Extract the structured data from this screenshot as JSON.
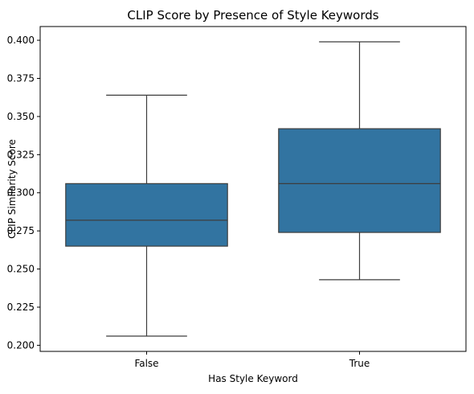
{
  "chart_data": {
    "type": "box",
    "title": "CLIP Score by Presence of Style Keywords",
    "xlabel": "Has Style Keyword",
    "ylabel": "CLIP Similarity Score",
    "categories": [
      "False",
      "True"
    ],
    "boxes": [
      {
        "category": "False",
        "whisker_low": 0.206,
        "q1": 0.265,
        "median": 0.282,
        "q3": 0.306,
        "whisker_high": 0.364
      },
      {
        "category": "True",
        "whisker_low": 0.243,
        "q1": 0.274,
        "median": 0.306,
        "q3": 0.342,
        "whisker_high": 0.399
      }
    ],
    "ylim": [
      0.196,
      0.409
    ],
    "yticks": [
      0.2,
      0.225,
      0.25,
      0.275,
      0.3,
      0.325,
      0.35,
      0.375,
      0.4
    ],
    "ytick_labels": [
      "0.200",
      "0.225",
      "0.250",
      "0.275",
      "0.300",
      "0.325",
      "0.350",
      "0.375",
      "0.400"
    ],
    "grid": false,
    "colors": {
      "box_fill": "#3274a1",
      "line": "#3d3d3d",
      "axis": "#000000"
    }
  }
}
